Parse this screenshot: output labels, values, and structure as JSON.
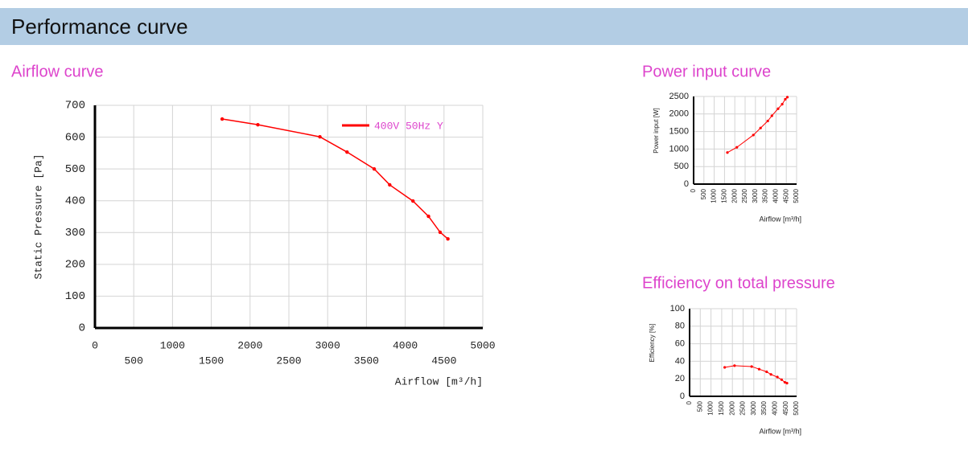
{
  "header": {
    "title": "Performance curve"
  },
  "chart_data": [
    {
      "type": "line",
      "title": "Airflow curve",
      "xlabel": "Airflow [m³/h]",
      "ylabel": "Static Pressure [Pa]",
      "x": [
        1640,
        2100,
        2900,
        3250,
        3600,
        3800,
        4100,
        4300,
        4450,
        4550
      ],
      "series": [
        {
          "name": "400V 50Hz Y",
          "color": "#ff0000",
          "values": [
            657,
            639,
            601,
            553,
            500,
            450,
            399,
            351,
            301,
            280
          ]
        }
      ],
      "xlim": [
        0,
        5000
      ],
      "ylim": [
        0,
        700
      ],
      "xticks": [
        0,
        500,
        1000,
        1500,
        2000,
        2500,
        3000,
        3500,
        4000,
        4500,
        5000
      ],
      "yticks": [
        0,
        100,
        200,
        300,
        400,
        500,
        600,
        700
      ],
      "grid": true,
      "legend": "upper right"
    },
    {
      "type": "line",
      "title": "Power input curve",
      "xlabel": "Airflow [m³/h]",
      "ylabel": "Power input [W]",
      "x": [
        1640,
        2100,
        2900,
        3250,
        3600,
        3800,
        4100,
        4300,
        4450,
        4550
      ],
      "series": [
        {
          "color": "#ff0000",
          "values": [
            900,
            1050,
            1400,
            1600,
            1800,
            1950,
            2150,
            2280,
            2420,
            2480
          ]
        }
      ],
      "xlim": [
        0,
        5000
      ],
      "ylim": [
        0,
        2500
      ],
      "xticks": [
        0,
        500,
        1000,
        1500,
        2000,
        2500,
        3000,
        3500,
        4000,
        4500,
        5000
      ],
      "yticks": [
        0,
        500,
        1000,
        1500,
        2000,
        2500
      ],
      "grid": true
    },
    {
      "type": "line",
      "title": "Efficiency on total pressure",
      "xlabel": "Airflow [m³/h]",
      "ylabel": "Efficiency [%]",
      "x": [
        1640,
        2100,
        2900,
        3250,
        3600,
        3800,
        4100,
        4300,
        4450,
        4550
      ],
      "series": [
        {
          "color": "#ff0000",
          "values": [
            33,
            35,
            34,
            31,
            28,
            25,
            22,
            19,
            16,
            15
          ]
        }
      ],
      "xlim": [
        0,
        5000
      ],
      "ylim": [
        0,
        100
      ],
      "xticks": [
        0,
        500,
        1000,
        1500,
        2000,
        2500,
        3000,
        3500,
        4000,
        4500,
        5000
      ],
      "yticks": [
        0,
        20,
        40,
        60,
        80,
        100
      ],
      "grid": true
    }
  ]
}
